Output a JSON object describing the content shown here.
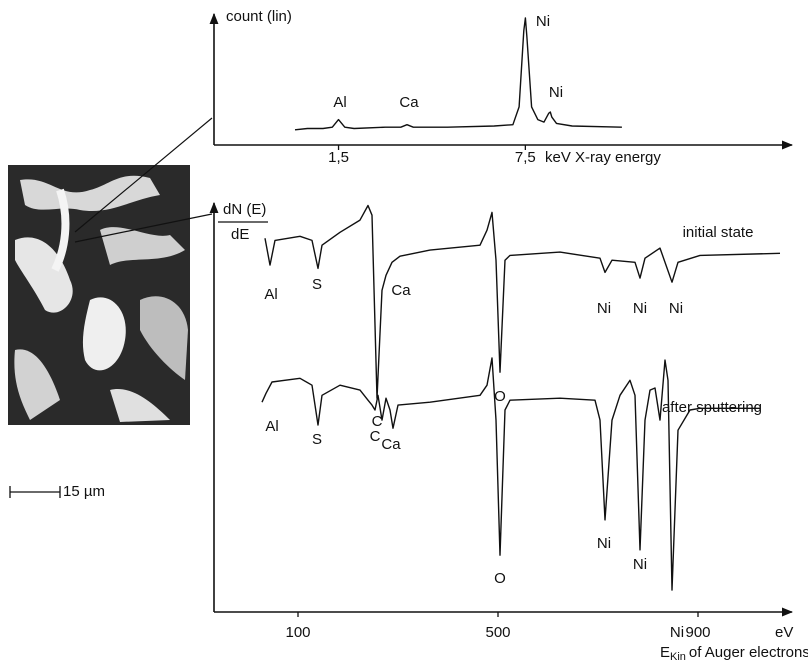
{
  "chart_data": [
    {
      "type": "line",
      "y_label": "count (lin)",
      "x_label": "keV X-ray energy",
      "x": [
        0.1,
        0.5,
        1.0,
        1.3,
        1.5,
        1.7,
        2.0,
        3.0,
        3.5,
        3.7,
        3.9,
        5.0,
        6.5,
        7.1,
        7.3,
        7.45,
        7.5,
        7.55,
        7.7,
        7.9,
        8.1,
        8.25,
        8.3,
        8.35,
        8.5,
        9.0,
        10.6
      ],
      "values": [
        12,
        13,
        13,
        14,
        20,
        14,
        13,
        14,
        14,
        16,
        14,
        14,
        15,
        16,
        30,
        90,
        100,
        85,
        30,
        20,
        18,
        25,
        26,
        22,
        17,
        15,
        14
      ],
      "color": "#111111",
      "xlim": [
        -2.5,
        16
      ],
      "ylim": [
        0,
        100
      ],
      "xticks": [
        {
          "value": 1.5,
          "label": "1,5"
        },
        {
          "value": 7.5,
          "label": "7,5"
        }
      ],
      "annotations": [
        "Al",
        "Ca",
        "Ni",
        "Ni"
      ]
    },
    {
      "type": "line",
      "y_label": {
        "numerator": "dN (E)",
        "denominator": "dE"
      },
      "x_unit": "eV",
      "x_label": {
        "main": "E",
        "sub": "Kin",
        "rest": "of Auger electrons"
      },
      "xlim": [
        -68,
        1084
      ],
      "ylim": [
        0,
        105
      ],
      "xticks": [
        100,
        500,
        900
      ],
      "series": [
        {
          "name": "initial state",
          "color": "#111111",
          "x": [
            34,
            44,
            54,
            104,
            128,
            140,
            148,
            184,
            224,
            240,
            248,
            258,
            268,
            276,
            288,
            304,
            364,
            464,
            478,
            488,
            496,
            504,
            514,
            524,
            624,
            704,
            714,
            728,
            774,
            784,
            794,
            824,
            848,
            860,
            904,
            1064
          ],
          "values": [
            92.1,
            85.5,
            91.6,
            92.6,
            91.6,
            84.7,
            90.4,
            93.6,
            96.6,
            100.2,
            97.8,
            52.7,
            79.3,
            83.0,
            86.2,
            87.7,
            89.2,
            90.4,
            94.1,
            98.5,
            86.7,
            59.1,
            86.7,
            87.9,
            88.7,
            87.2,
            83.7,
            86.7,
            86.2,
            82.3,
            87.2,
            89.7,
            81.3,
            86.2,
            87.9,
            88.4
          ],
          "annotations": [
            "Al",
            "S",
            "Ca",
            "C",
            "O",
            "Ni",
            "Ni",
            "Ni"
          ]
        },
        {
          "name": "after sputtering",
          "color": "#111111",
          "x": [
            28,
            36,
            48,
            104,
            128,
            140,
            148,
            184,
            224,
            240,
            248,
            254,
            260,
            268,
            276,
            284,
            290,
            300,
            364,
            464,
            478,
            488,
            496,
            504,
            514,
            524,
            624,
            694,
            704,
            714,
            728,
            744,
            764,
            774,
            784,
            794,
            804,
            814,
            824,
            834,
            840,
            848,
            860,
            884,
            904,
            1024
          ],
          "values": [
            51.7,
            53.9,
            56.7,
            57.6,
            55.9,
            46.1,
            53.4,
            55.9,
            54.7,
            52.2,
            51.0,
            49.8,
            53.4,
            47.3,
            52.7,
            49.8,
            45.3,
            51.0,
            51.7,
            53.4,
            55.9,
            62.6,
            47.3,
            14.0,
            49.8,
            52.2,
            52.7,
            52.2,
            47.3,
            22.7,
            47.3,
            53.4,
            57.1,
            53.4,
            15.3,
            47.3,
            54.7,
            55.2,
            47.3,
            62.1,
            57.1,
            5.4,
            44.8,
            49.8,
            50.2,
            50.2
          ],
          "annotations": [
            "Al",
            "S",
            "C",
            "Ca",
            "O",
            "Ni",
            "Ni",
            "Ni"
          ]
        }
      ]
    }
  ],
  "image": {
    "scale_bar": "15 µm"
  }
}
